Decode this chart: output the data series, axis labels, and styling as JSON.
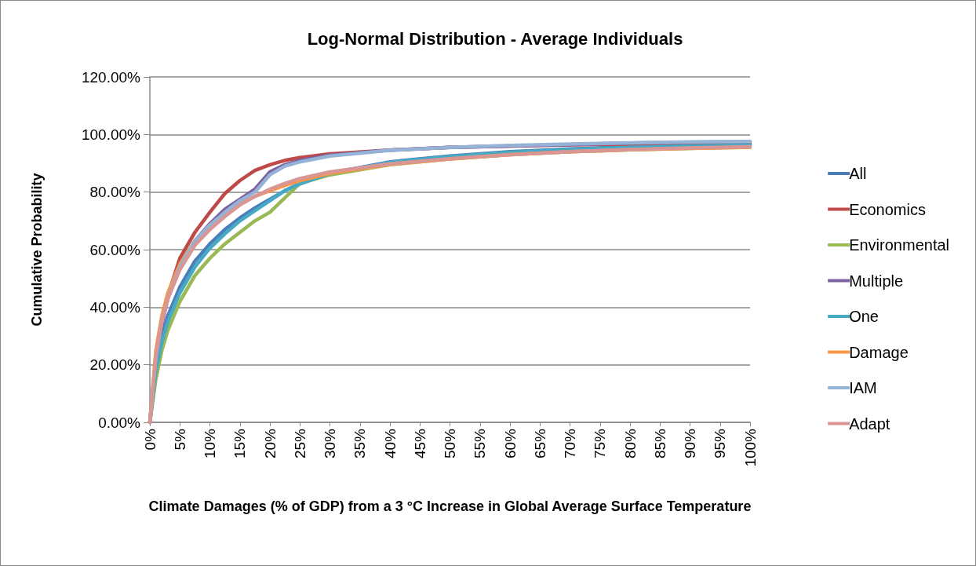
{
  "chart_data": {
    "type": "line",
    "title": "Log-Normal Distribution - Average Individuals",
    "xlabel": "Climate Damages (% of GDP) from a 3 °C Increase in Global Average Surface Temperature",
    "ylabel": "Cumulative Probability",
    "x": [
      0,
      1,
      2,
      3,
      5,
      7.5,
      10,
      12.5,
      15,
      17.5,
      20,
      22.5,
      25,
      30,
      40,
      50,
      60,
      70,
      80,
      90,
      100
    ],
    "series": [
      {
        "name": "All",
        "color": "#4a7ebb",
        "values": [
          0,
          20,
          30,
          37,
          47,
          56,
          62,
          67,
          71,
          74.5,
          77.5,
          80.5,
          83,
          86.5,
          90.5,
          92.5,
          94,
          95,
          95.7,
          96.2,
          96.5
        ]
      },
      {
        "name": "Economics",
        "color": "#be4b48",
        "values": [
          0,
          22,
          35,
          44,
          57,
          66,
          73,
          79.5,
          84,
          87.5,
          89.5,
          91,
          92,
          93.3,
          94.6,
          95.5,
          96,
          96.4,
          96.7,
          96.9,
          97.0
        ]
      },
      {
        "name": "Environmental",
        "color": "#98b954",
        "values": [
          0,
          15,
          25,
          32,
          42,
          51,
          57,
          62,
          66,
          70,
          73,
          78,
          83,
          86,
          89.5,
          91.5,
          93,
          94,
          94.7,
          95.2,
          95.6
        ]
      },
      {
        "name": "Multiple",
        "color": "#7d60a0",
        "values": [
          0,
          22,
          34,
          43,
          54,
          63,
          69,
          74,
          77.5,
          81,
          87,
          89.5,
          91,
          92.8,
          94.6,
          95.5,
          96,
          96.5,
          97,
          97.3,
          97.5
        ]
      },
      {
        "name": "One",
        "color": "#46aac5",
        "values": [
          0,
          18,
          28,
          35,
          45,
          54,
          60.5,
          65.5,
          70,
          73.5,
          77,
          80.5,
          82.8,
          86.5,
          90.3,
          92.3,
          93.8,
          94.8,
          95.5,
          96,
          96.3
        ]
      },
      {
        "name": "Damage",
        "color": "#f79646",
        "values": [
          0,
          25,
          37,
          45,
          55,
          63,
          68.5,
          72.5,
          76,
          78.5,
          80.5,
          82.3,
          84,
          86.5,
          89.6,
          91.5,
          93,
          94,
          94.7,
          95.2,
          95.6
        ]
      },
      {
        "name": "IAM",
        "color": "#95b3d7",
        "values": [
          0,
          23,
          35,
          43,
          54,
          63,
          68.5,
          73,
          77,
          80,
          86,
          89,
          90.5,
          92.5,
          94.5,
          95.5,
          96.2,
          96.7,
          97.1,
          97.4,
          97.6
        ]
      },
      {
        "name": "Adapt",
        "color": "#d99694",
        "values": [
          0,
          23,
          35,
          43,
          53,
          61.5,
          67,
          71.5,
          75.5,
          78.5,
          81,
          83,
          84.7,
          87,
          89.8,
          91.6,
          93,
          94,
          94.8,
          95.3,
          95.7
        ]
      }
    ],
    "xlim": [
      0,
      100
    ],
    "xticks": [
      {
        "value": 0,
        "label": "0%"
      },
      {
        "value": 5,
        "label": "5%"
      },
      {
        "value": 10,
        "label": "10%"
      },
      {
        "value": 15,
        "label": "15%"
      },
      {
        "value": 20,
        "label": "20%"
      },
      {
        "value": 25,
        "label": "25%"
      },
      {
        "value": 30,
        "label": "30%"
      },
      {
        "value": 35,
        "label": "35%"
      },
      {
        "value": 40,
        "label": "40%"
      },
      {
        "value": 45,
        "label": "45%"
      },
      {
        "value": 50,
        "label": "50%"
      },
      {
        "value": 55,
        "label": "55%"
      },
      {
        "value": 60,
        "label": "60%"
      },
      {
        "value": 65,
        "label": "65%"
      },
      {
        "value": 70,
        "label": "70%"
      },
      {
        "value": 75,
        "label": "75%"
      },
      {
        "value": 80,
        "label": "80%"
      },
      {
        "value": 85,
        "label": "85%"
      },
      {
        "value": 90,
        "label": "90%"
      },
      {
        "value": 95,
        "label": "95%"
      },
      {
        "value": 100,
        "label": "100%"
      }
    ],
    "ylim": [
      0,
      120
    ],
    "yticks": [
      {
        "value": 0,
        "label": "0.00%"
      },
      {
        "value": 20,
        "label": "20.00%"
      },
      {
        "value": 40,
        "label": "40.00%"
      },
      {
        "value": 60,
        "label": "60.00%"
      },
      {
        "value": 80,
        "label": "80.00%"
      },
      {
        "value": 100,
        "label": "100.00%"
      },
      {
        "value": 120,
        "label": "120.00%"
      }
    ],
    "grid": "y",
    "legend": "right",
    "marker": "none",
    "line_style": "solid"
  }
}
